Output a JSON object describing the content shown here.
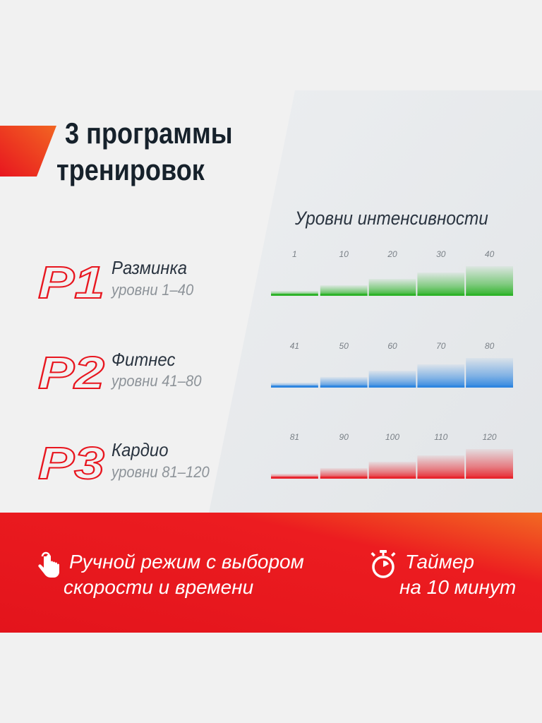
{
  "title": {
    "line1": "3 программы",
    "line2": "тренировок"
  },
  "levels_title": "Уровни интенсивности",
  "programs": [
    {
      "code": "P1",
      "name": "Разминка",
      "sub": "уровни 1–40"
    },
    {
      "code": "P2",
      "name": "Фитнес",
      "sub": "уровни 41–80"
    },
    {
      "code": "P3",
      "name": "Кардио",
      "sub": "уровни 81–120"
    }
  ],
  "chart_data": [
    {
      "type": "bar",
      "categories": [
        "1",
        "10",
        "20",
        "30",
        "40"
      ],
      "values": [
        1,
        10,
        20,
        30,
        40
      ],
      "ylim": [
        0,
        40
      ],
      "color": "#2fb32a"
    },
    {
      "type": "bar",
      "categories": [
        "41",
        "50",
        "60",
        "70",
        "80"
      ],
      "values": [
        41,
        50,
        60,
        70,
        80
      ],
      "ylim": [
        0,
        80
      ],
      "color": "#2f86e0"
    },
    {
      "type": "bar",
      "categories": [
        "81",
        "90",
        "100",
        "110",
        "120"
      ],
      "values": [
        81,
        90,
        100,
        110,
        120
      ],
      "ylim": [
        0,
        120
      ],
      "color": "#e8262e"
    }
  ],
  "features": {
    "manual": {
      "line1": "Ручной режим с выбором",
      "line2": "скорости и времени",
      "icon": "touch-hand-icon"
    },
    "timer": {
      "line1": "Таймер",
      "line2": "на 10 минут",
      "icon": "stopwatch-icon"
    }
  },
  "colors": {
    "red": "#e8161f",
    "orange": "#f26522",
    "dark": "#16212b"
  }
}
